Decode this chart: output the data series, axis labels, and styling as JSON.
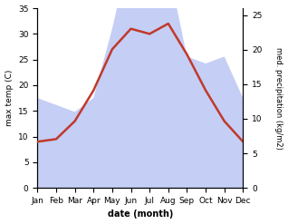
{
  "months": [
    "Jan",
    "Feb",
    "Mar",
    "Apr",
    "May",
    "Jun",
    "Jul",
    "Aug",
    "Sep",
    "Oct",
    "Nov",
    "Dec"
  ],
  "temp": [
    9,
    9.5,
    13,
    19,
    27,
    31,
    30,
    32,
    26,
    19,
    13,
    9
  ],
  "precip": [
    13,
    12,
    11,
    13,
    23,
    35,
    26,
    32,
    19,
    18,
    19,
    13
  ],
  "temp_color": "#c0392b",
  "precip_fill_color": "#c5cef5",
  "temp_ylim": [
    0,
    35
  ],
  "precip_ylim": [
    0,
    26
  ],
  "precip_yticks": [
    0,
    5,
    10,
    15,
    20,
    25
  ],
  "temp_yticks": [
    0,
    5,
    10,
    15,
    20,
    25,
    30,
    35
  ],
  "xlabel": "date (month)",
  "ylabel_left": "max temp (C)",
  "ylabel_right": "med. precipitation (kg/m2)",
  "figsize": [
    3.18,
    2.47
  ],
  "dpi": 100
}
